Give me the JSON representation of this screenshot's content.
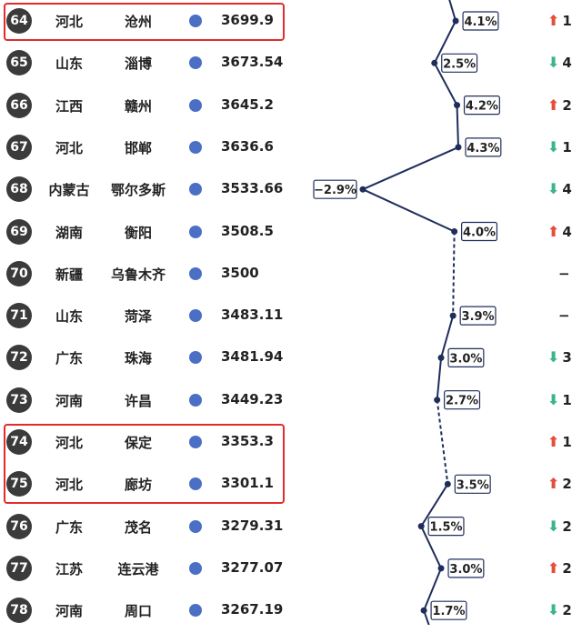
{
  "chart_data": {
    "type": "table",
    "columns": [
      "rank",
      "province",
      "city",
      "gdp",
      "growth",
      "rank_change"
    ],
    "rows": [
      {
        "rank": "64",
        "province": "河北",
        "city": "沧州",
        "gdp": "3699.9",
        "growth": 4.1,
        "growth_label": "4.1%",
        "change_dir": "up",
        "change_val": "1"
      },
      {
        "rank": "65",
        "province": "山东",
        "city": "淄博",
        "gdp": "3673.54",
        "growth": 2.5,
        "growth_label": "2.5%",
        "change_dir": "down",
        "change_val": "4"
      },
      {
        "rank": "66",
        "province": "江西",
        "city": "赣州",
        "gdp": "3645.2",
        "growth": 4.2,
        "growth_label": "4.2%",
        "change_dir": "up",
        "change_val": "2"
      },
      {
        "rank": "67",
        "province": "河北",
        "city": "邯郸",
        "gdp": "3636.6",
        "growth": 4.3,
        "growth_label": "4.3%",
        "change_dir": "down",
        "change_val": "1"
      },
      {
        "rank": "68",
        "province": "内蒙古",
        "city": "鄂尔多斯",
        "gdp": "3533.66",
        "growth": -2.9,
        "growth_label": "−2.9%",
        "change_dir": "down",
        "change_val": "4"
      },
      {
        "rank": "69",
        "province": "湖南",
        "city": "衡阳",
        "gdp": "3508.5",
        "growth": 4.0,
        "growth_label": "4.0%",
        "change_dir": "up",
        "change_val": "4"
      },
      {
        "rank": "70",
        "province": "新疆",
        "city": "乌鲁木齐",
        "gdp": "3500",
        "growth": null,
        "growth_label": "",
        "change_dir": "none",
        "change_val": "−"
      },
      {
        "rank": "71",
        "province": "山东",
        "city": "菏泽",
        "gdp": "3483.11",
        "growth": 3.9,
        "growth_label": "3.9%",
        "change_dir": "none",
        "change_val": "−"
      },
      {
        "rank": "72",
        "province": "广东",
        "city": "珠海",
        "gdp": "3481.94",
        "growth": 3.0,
        "growth_label": "3.0%",
        "change_dir": "down",
        "change_val": "3"
      },
      {
        "rank": "73",
        "province": "河南",
        "city": "许昌",
        "gdp": "3449.23",
        "growth": 2.7,
        "growth_label": "2.7%",
        "change_dir": "down",
        "change_val": "1"
      },
      {
        "rank": "74",
        "province": "河北",
        "city": "保定",
        "gdp": "3353.3",
        "growth": null,
        "growth_label": "",
        "change_dir": "up",
        "change_val": "1"
      },
      {
        "rank": "75",
        "province": "河北",
        "city": "廊坊",
        "gdp": "3301.1",
        "growth": 3.5,
        "growth_label": "3.5%",
        "change_dir": "up",
        "change_val": "2"
      },
      {
        "rank": "76",
        "province": "广东",
        "city": "茂名",
        "gdp": "3279.31",
        "growth": 1.5,
        "growth_label": "1.5%",
        "change_dir": "down",
        "change_val": "2"
      },
      {
        "rank": "77",
        "province": "江苏",
        "city": "连云港",
        "gdp": "3277.07",
        "growth": 3.0,
        "growth_label": "3.0%",
        "change_dir": "up",
        "change_val": "2"
      },
      {
        "rank": "78",
        "province": "河南",
        "city": "周口",
        "gdp": "3267.19",
        "growth": 1.7,
        "growth_label": "1.7%",
        "change_dir": "down",
        "change_val": "2"
      }
    ],
    "highlighted_ranks": [
      [
        "64"
      ],
      [
        "74",
        "75"
      ]
    ],
    "colors": {
      "line": "#1f2d5c",
      "dot": "#4a6fc4",
      "rank_circle": "#3b3b3b",
      "up_arrow": "#e0503a",
      "down_arrow": "#3ab58a",
      "highlight": "#e32b2b"
    }
  }
}
